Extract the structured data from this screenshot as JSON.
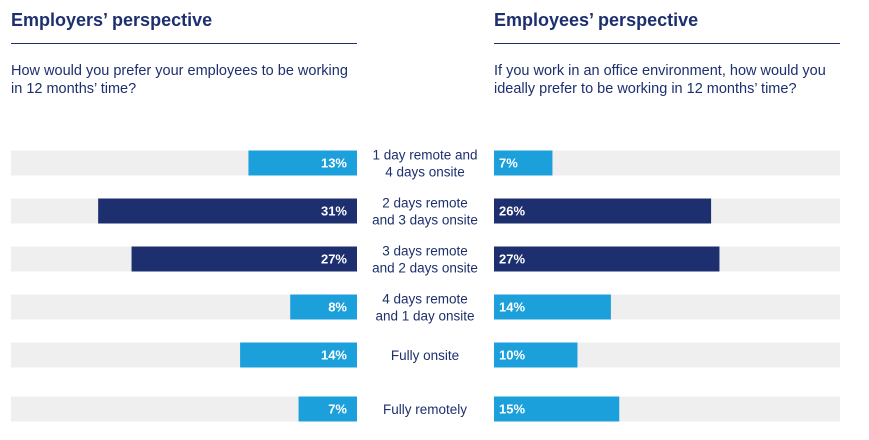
{
  "left": {
    "heading": "Employers’ perspective",
    "question": "How would you prefer your employees to be working in 12 months’ time?"
  },
  "right": {
    "heading": "Employees’ perspective",
    "question": "If you work in an office environment, how would you ideally prefer to be working in 12 months’ time?"
  },
  "colors": {
    "highlight": "#1d2f6f",
    "normal": "#1ca0dc",
    "track": "#efefef",
    "text": "#1d2f6f"
  },
  "chart_data": {
    "type": "bar",
    "categories": [
      [
        "1 day remote and",
        "4 days onsite"
      ],
      [
        "2 days remote",
        "and 3 days onsite"
      ],
      [
        "3 days remote",
        "and 2 days onsite"
      ],
      [
        "4 days remote",
        "and 1 day onsite"
      ],
      [
        "Fully onsite"
      ],
      [
        "Fully remotely"
      ]
    ],
    "series": [
      {
        "values": [
          13,
          31,
          27,
          8,
          14,
          7
        ],
        "labels": [
          "13%",
          "31%",
          "27%",
          "8%",
          "14%",
          "7%"
        ]
      },
      {
        "values": [
          7,
          26,
          27,
          14,
          10,
          15
        ],
        "labels": [
          "7%",
          "26%",
          "27%",
          "14%",
          "10%",
          "15%"
        ]
      }
    ],
    "highlighted": [
      false,
      true,
      true,
      false,
      false,
      false
    ],
    "xlim": [
      0,
      100
    ],
    "grid": false
  }
}
